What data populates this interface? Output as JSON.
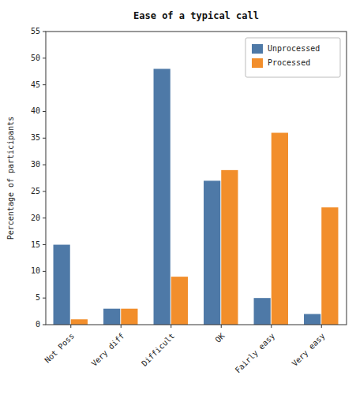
{
  "chart_data": {
    "type": "bar",
    "title": "Ease of a typical call",
    "categories": [
      "Not Poss",
      "Very diff",
      "Difficult",
      "OK",
      "Fairly easy",
      "Very easy"
    ],
    "series": [
      {
        "name": "Unprocessed",
        "color": "#4e79a7",
        "values": [
          15,
          3,
          48,
          27,
          5,
          2
        ]
      },
      {
        "name": "Processed",
        "color": "#f28e2b",
        "values": [
          1,
          3,
          9,
          29,
          36,
          22
        ]
      }
    ],
    "ylabel": "Percentage of participants",
    "ylim": [
      0,
      55
    ],
    "yticks": [
      0,
      5,
      10,
      15,
      20,
      25,
      30,
      35,
      40,
      45,
      50,
      55
    ],
    "grid": false,
    "legend": "upper right"
  }
}
